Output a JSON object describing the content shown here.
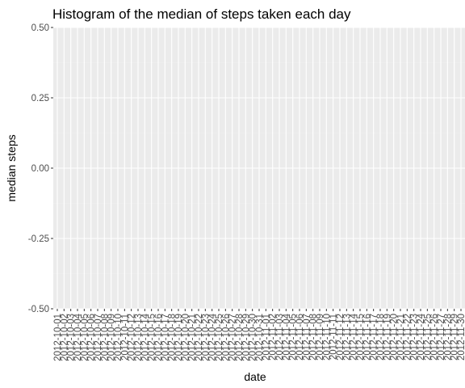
{
  "chart_data": {
    "type": "bar",
    "title": "Histogram of the median of steps taken each day",
    "xlabel": "date",
    "ylabel": "median steps",
    "ylim": [
      -0.5,
      0.5
    ],
    "yticks": [
      "0.50",
      "0.25",
      "0.00",
      "-0.25",
      "-0.50"
    ],
    "ytick_values": [
      0.5,
      0.25,
      0,
      -0.25,
      -0.5
    ],
    "categories": [
      "2012-10-01",
      "2012-10-02",
      "2012-10-03",
      "2012-10-04",
      "2012-10-05",
      "2012-10-06",
      "2012-10-07",
      "2012-10-08",
      "2012-10-09",
      "2012-10-10",
      "2012-10-11",
      "2012-10-12",
      "2012-10-13",
      "2012-10-14",
      "2012-10-15",
      "2012-10-16",
      "2012-10-17",
      "2012-10-18",
      "2012-10-19",
      "2012-10-20",
      "2012-10-21",
      "2012-10-22",
      "2012-10-23",
      "2012-10-24",
      "2012-10-25",
      "2012-10-26",
      "2012-10-27",
      "2012-10-28",
      "2012-10-29",
      "2012-10-30",
      "2012-10-31",
      "2012-11-01",
      "2012-11-02",
      "2012-11-03",
      "2012-11-04",
      "2012-11-05",
      "2012-11-06",
      "2012-11-07",
      "2012-11-08",
      "2012-11-09",
      "2012-11-10",
      "2012-11-11",
      "2012-11-12",
      "2012-11-13",
      "2012-11-14",
      "2012-11-15",
      "2012-11-16",
      "2012-11-17",
      "2012-11-18",
      "2012-11-19",
      "2012-11-20",
      "2012-11-21",
      "2012-11-22",
      "2012-11-23",
      "2012-11-24",
      "2012-11-25",
      "2012-11-26",
      "2012-11-27",
      "2012-11-28",
      "2012-11-29",
      "2012-11-30"
    ],
    "values": [
      0,
      0,
      0,
      0,
      0,
      0,
      0,
      0,
      0,
      0,
      0,
      0,
      0,
      0,
      0,
      0,
      0,
      0,
      0,
      0,
      0,
      0,
      0,
      0,
      0,
      0,
      0,
      0,
      0,
      0,
      0,
      0,
      0,
      0,
      0,
      0,
      0,
      0,
      0,
      0,
      0,
      0,
      0,
      0,
      0,
      0,
      0,
      0,
      0,
      0,
      0,
      0,
      0,
      0,
      0,
      0,
      0,
      0,
      0,
      0,
      0
    ],
    "grid": true,
    "colors": {
      "panel_background": "#ebebeb",
      "grid_major": "#ffffff",
      "grid_minor": "#f2f2f2",
      "tick_text": "#4d4d4d",
      "tick_mark": "#333333"
    }
  }
}
